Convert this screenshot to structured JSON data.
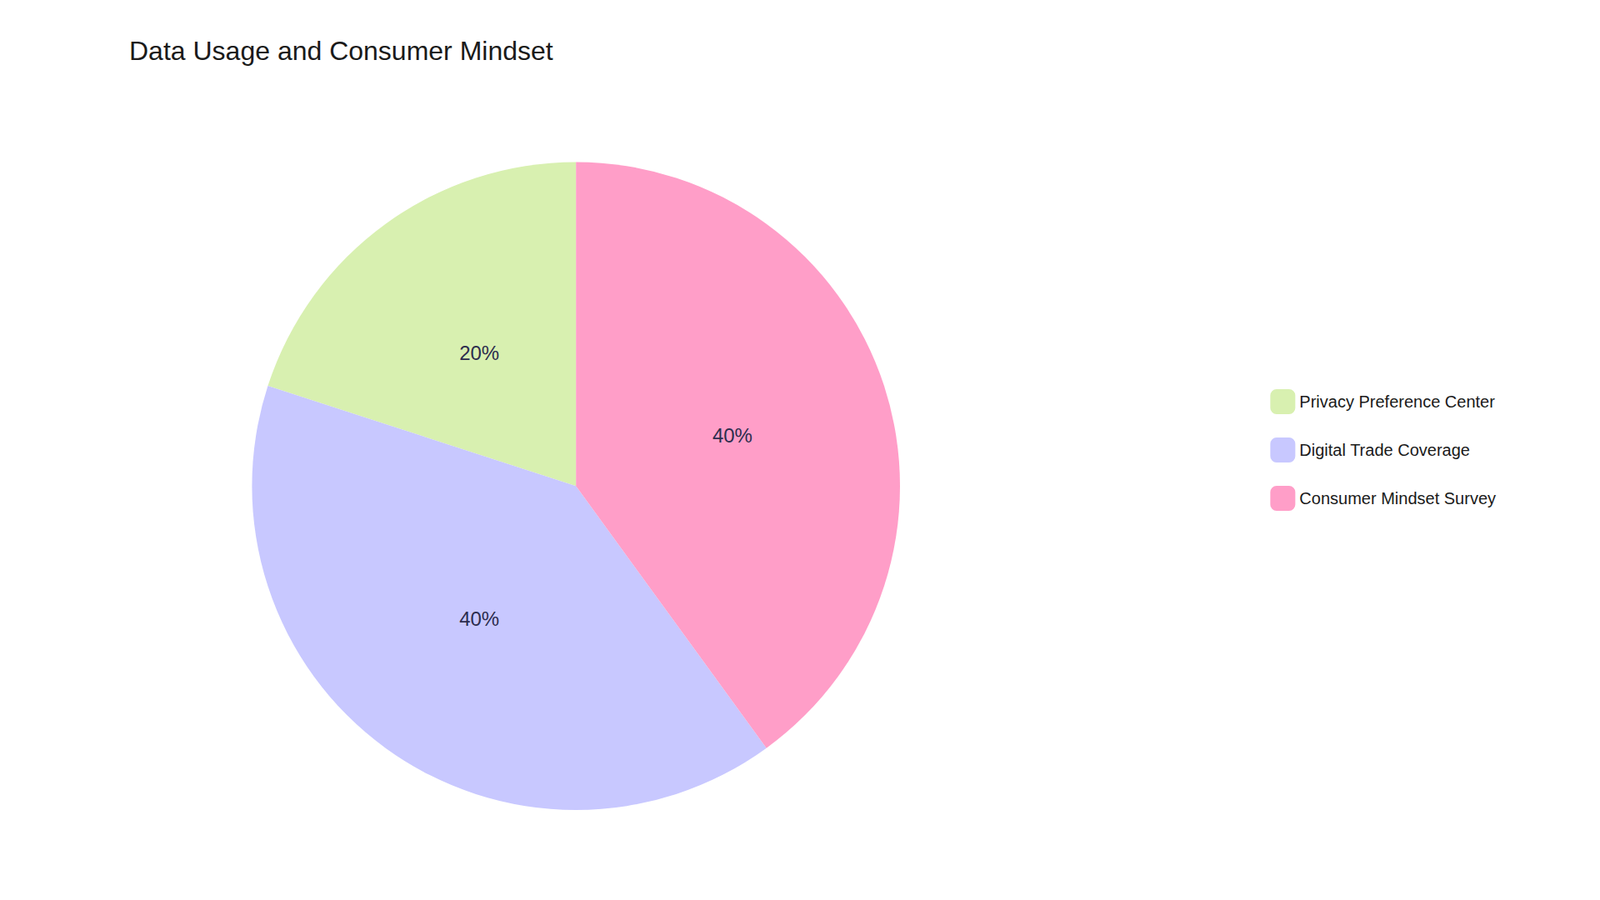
{
  "chart_data": {
    "type": "pie",
    "title": "Data Usage and Consumer Mindset",
    "categories": [
      "Privacy Preference Center",
      "Digital Trade Coverage",
      "Consumer Mindset Survey"
    ],
    "values": [
      20,
      40,
      40
    ],
    "value_labels": [
      "20%",
      "40%",
      "40%"
    ],
    "colors": [
      "#D8F0B0",
      "#C8C8FF",
      "#FF9EC8"
    ],
    "data_labels": true,
    "legend": "right"
  }
}
